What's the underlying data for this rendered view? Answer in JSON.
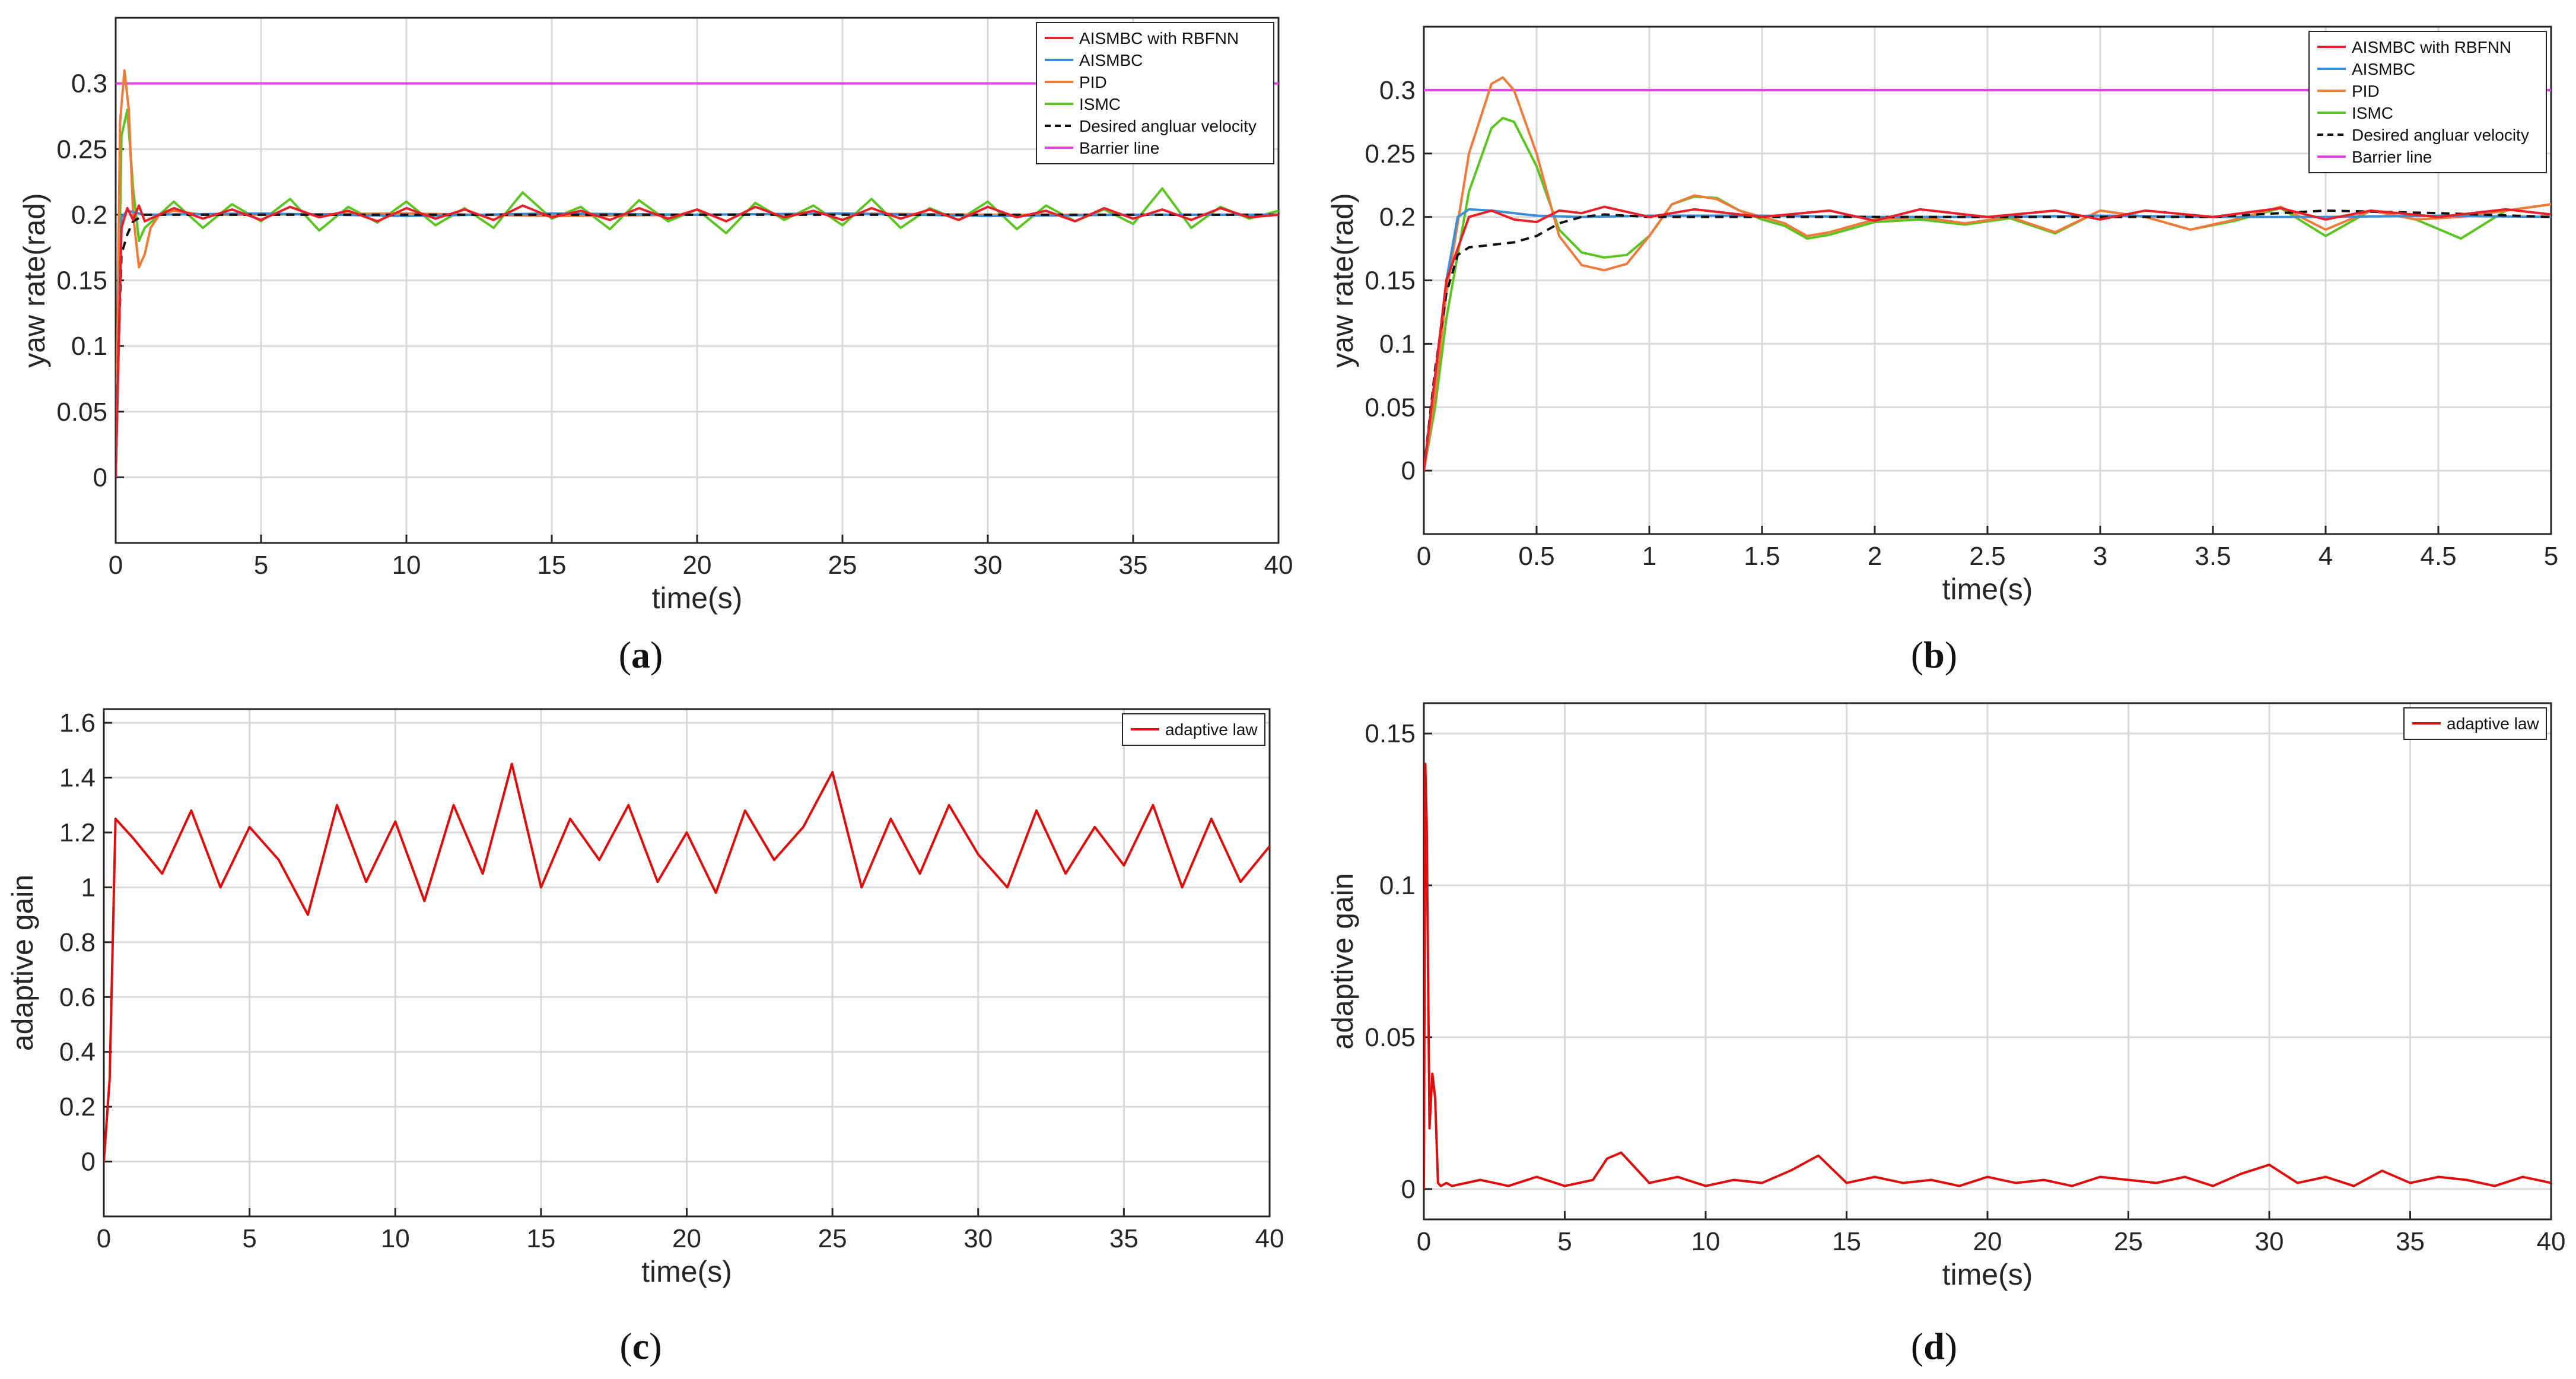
{
  "chart_data": [
    {
      "id": "a",
      "type": "line",
      "caption": "a",
      "xlabel": "time(s)",
      "ylabel": "yaw rate(rad)",
      "xlim": [
        0,
        40
      ],
      "ylim": [
        -0.05,
        0.35
      ],
      "xticks": [
        0,
        5,
        10,
        15,
        20,
        25,
        30,
        35,
        40
      ],
      "xtick_labels": [
        "0",
        "5",
        "10",
        "15",
        "20",
        "25",
        "30",
        "35",
        "40"
      ],
      "yticks": [
        0,
        0.05,
        0.1,
        0.15,
        0.2,
        0.25,
        0.3
      ],
      "ytick_labels": [
        "0",
        "0.05",
        "0.1",
        "0.15",
        "0.2",
        "0.25",
        "0.3"
      ],
      "grid": true,
      "legend_position": "top-right",
      "series": [
        {
          "name": "AISMBC with RBFNN",
          "color": "#e8202a",
          "dash": "none",
          "x": [
            0,
            0.2,
            0.4,
            0.6,
            0.8,
            1,
            2,
            3,
            4,
            5,
            6,
            7,
            8,
            9,
            10,
            11,
            12,
            13,
            14,
            15,
            16,
            17,
            18,
            19,
            20,
            21,
            22,
            23,
            24,
            25,
            26,
            27,
            28,
            29,
            30,
            31,
            32,
            33,
            34,
            35,
            36,
            37,
            38,
            39,
            40
          ],
          "y": [
            0,
            0.19,
            0.205,
            0.196,
            0.207,
            0.195,
            0.205,
            0.197,
            0.204,
            0.196,
            0.206,
            0.198,
            0.203,
            0.195,
            0.205,
            0.197,
            0.204,
            0.196,
            0.207,
            0.198,
            0.203,
            0.196,
            0.205,
            0.197,
            0.204,
            0.195,
            0.206,
            0.198,
            0.203,
            0.196,
            0.205,
            0.197,
            0.204,
            0.196,
            0.206,
            0.198,
            0.203,
            0.195,
            0.205,
            0.197,
            0.204,
            0.196,
            0.205,
            0.198,
            0.2
          ]
        },
        {
          "name": "AISMBC",
          "color": "#3a8fd9",
          "dash": "none",
          "x": [
            0,
            0.2,
            0.4,
            1,
            5,
            10,
            15,
            20,
            25,
            30,
            35,
            40
          ],
          "y": [
            0,
            0.198,
            0.203,
            0.2,
            0.201,
            0.199,
            0.201,
            0.2,
            0.201,
            0.199,
            0.2,
            0.2
          ]
        },
        {
          "name": "PID",
          "color": "#f07a3a",
          "dash": "none",
          "x": [
            0,
            0.15,
            0.3,
            0.45,
            0.6,
            0.8,
            1,
            1.2,
            1.5,
            2,
            3,
            5,
            10,
            15,
            20,
            25,
            30,
            35,
            40
          ],
          "y": [
            0,
            0.27,
            0.31,
            0.28,
            0.2,
            0.16,
            0.17,
            0.19,
            0.2,
            0.203,
            0.2,
            0.2,
            0.201,
            0.199,
            0.2,
            0.201,
            0.2,
            0.2,
            0.2
          ]
        },
        {
          "name": "ISMC",
          "color": "#5cc421",
          "dash": "none",
          "x": [
            0,
            0.2,
            0.4,
            0.6,
            0.8,
            1,
            2,
            3,
            4,
            5,
            6,
            7,
            8,
            9,
            10,
            11,
            12,
            13,
            14,
            15,
            16,
            17,
            18,
            19,
            20,
            21,
            22,
            23,
            24,
            25,
            26,
            27,
            28,
            29,
            30,
            31,
            32,
            33,
            34,
            35,
            36,
            37,
            38,
            39,
            40
          ],
          "y": [
            0,
            0.26,
            0.28,
            0.22,
            0.18,
            0.19,
            0.21,
            0.19,
            0.208,
            0.195,
            0.212,
            0.188,
            0.206,
            0.194,
            0.21,
            0.192,
            0.205,
            0.19,
            0.217,
            0.197,
            0.206,
            0.189,
            0.211,
            0.195,
            0.204,
            0.186,
            0.209,
            0.196,
            0.207,
            0.192,
            0.212,
            0.19,
            0.205,
            0.196,
            0.21,
            0.189,
            0.207,
            0.195,
            0.204,
            0.193,
            0.22,
            0.19,
            0.206,
            0.197,
            0.203
          ]
        },
        {
          "name": "Desired angluar velocity",
          "color": "#111111",
          "dash": "dashed",
          "x": [
            0,
            0.1,
            0.2,
            0.4,
            0.6,
            1,
            2,
            5,
            10,
            20,
            30,
            40
          ],
          "y": [
            0,
            0.1,
            0.17,
            0.185,
            0.195,
            0.2,
            0.2,
            0.2,
            0.2,
            0.2,
            0.2,
            0.2
          ]
        },
        {
          "name": "Barrier line",
          "color": "#e043e0",
          "dash": "none",
          "x": [
            0,
            40
          ],
          "y": [
            0.3,
            0.3
          ]
        }
      ]
    },
    {
      "id": "b",
      "type": "line",
      "caption": "b",
      "xlabel": "time(s)",
      "ylabel": "yaw rate(rad)",
      "xlim": [
        0,
        5
      ],
      "ylim": [
        -0.05,
        0.35
      ],
      "xticks": [
        0,
        0.5,
        1,
        1.5,
        2,
        2.5,
        3,
        3.5,
        4,
        4.5,
        5
      ],
      "xtick_labels": [
        "0",
        "0.5",
        "1",
        "1.5",
        "2",
        "2.5",
        "3",
        "3.5",
        "4",
        "4.5",
        "5"
      ],
      "yticks": [
        0,
        0.05,
        0.1,
        0.15,
        0.2,
        0.25,
        0.3
      ],
      "ytick_labels": [
        "0",
        "0.05",
        "0.1",
        "0.15",
        "0.2",
        "0.25",
        "0.3"
      ],
      "grid": true,
      "legend_position": "top-right",
      "series": [
        {
          "name": "AISMBC with RBFNN",
          "color": "#e8202a",
          "dash": "none",
          "x": [
            0,
            0.1,
            0.2,
            0.3,
            0.4,
            0.5,
            0.6,
            0.7,
            0.8,
            1,
            1.2,
            1.5,
            1.8,
            2,
            2.2,
            2.5,
            2.8,
            3,
            3.2,
            3.5,
            3.8,
            4,
            4.2,
            4.5,
            4.8,
            5
          ],
          "y": [
            0,
            0.15,
            0.2,
            0.205,
            0.198,
            0.196,
            0.205,
            0.203,
            0.208,
            0.2,
            0.206,
            0.2,
            0.205,
            0.197,
            0.206,
            0.2,
            0.205,
            0.198,
            0.205,
            0.2,
            0.207,
            0.198,
            0.205,
            0.2,
            0.206,
            0.202
          ]
        },
        {
          "name": "AISMBC",
          "color": "#3a8fd9",
          "dash": "none",
          "x": [
            0,
            0.1,
            0.15,
            0.2,
            0.3,
            0.5,
            0.7,
            1,
            1.5,
            2,
            2.5,
            3,
            3.5,
            4,
            4.5,
            5
          ],
          "y": [
            0,
            0.15,
            0.2,
            0.206,
            0.205,
            0.201,
            0.2,
            0.201,
            0.201,
            0.2,
            0.2,
            0.201,
            0.2,
            0.2,
            0.201,
            0.2
          ]
        },
        {
          "name": "PID",
          "color": "#f07a3a",
          "dash": "none",
          "x": [
            0,
            0.05,
            0.1,
            0.2,
            0.3,
            0.35,
            0.4,
            0.5,
            0.6,
            0.7,
            0.8,
            0.9,
            1,
            1.1,
            1.2,
            1.3,
            1.4,
            1.5,
            1.6,
            1.7,
            1.8,
            2,
            2.2,
            2.4,
            2.6,
            2.8,
            3,
            3.2,
            3.4,
            3.6,
            3.8,
            4,
            4.2,
            4.4,
            4.6,
            4.8,
            5
          ],
          "y": [
            0,
            0.06,
            0.14,
            0.25,
            0.305,
            0.31,
            0.3,
            0.25,
            0.185,
            0.162,
            0.158,
            0.163,
            0.185,
            0.21,
            0.217,
            0.214,
            0.205,
            0.2,
            0.195,
            0.185,
            0.188,
            0.198,
            0.2,
            0.195,
            0.2,
            0.188,
            0.205,
            0.2,
            0.19,
            0.198,
            0.208,
            0.19,
            0.205,
            0.198,
            0.2,
            0.205,
            0.21
          ]
        },
        {
          "name": "ISMC",
          "color": "#5cc421",
          "dash": "none",
          "x": [
            0,
            0.05,
            0.1,
            0.2,
            0.3,
            0.35,
            0.4,
            0.5,
            0.6,
            0.7,
            0.8,
            0.9,
            1,
            1.1,
            1.2,
            1.3,
            1.4,
            1.5,
            1.6,
            1.7,
            1.8,
            2,
            2.2,
            2.4,
            2.6,
            2.8,
            3,
            3.2,
            3.4,
            3.6,
            3.8,
            4,
            4.2,
            4.4,
            4.6,
            4.8,
            5
          ],
          "y": [
            0,
            0.05,
            0.12,
            0.22,
            0.27,
            0.278,
            0.275,
            0.24,
            0.19,
            0.172,
            0.168,
            0.17,
            0.185,
            0.21,
            0.216,
            0.215,
            0.205,
            0.198,
            0.193,
            0.183,
            0.186,
            0.196,
            0.198,
            0.194,
            0.199,
            0.187,
            0.205,
            0.2,
            0.19,
            0.197,
            0.207,
            0.185,
            0.205,
            0.198,
            0.183,
            0.205,
            0.21
          ]
        },
        {
          "name": "Desired angluar velocity",
          "color": "#111111",
          "dash": "dashed",
          "x": [
            0,
            0.05,
            0.1,
            0.15,
            0.2,
            0.3,
            0.4,
            0.5,
            0.6,
            0.7,
            0.8,
            1,
            1.5,
            2,
            2.5,
            3,
            3.5,
            4,
            4.5,
            5
          ],
          "y": [
            0,
            0.08,
            0.14,
            0.17,
            0.176,
            0.178,
            0.18,
            0.185,
            0.195,
            0.2,
            0.202,
            0.2,
            0.2,
            0.2,
            0.2,
            0.2,
            0.2,
            0.205,
            0.203,
            0.2
          ]
        },
        {
          "name": "Barrier line",
          "color": "#e043e0",
          "dash": "none",
          "x": [
            0,
            5
          ],
          "y": [
            0.3,
            0.3
          ]
        }
      ]
    },
    {
      "id": "c",
      "type": "line",
      "caption": "c",
      "xlabel": "time(s)",
      "ylabel": "adaptive gain",
      "xlim": [
        0,
        40
      ],
      "ylim": [
        -0.2,
        1.65
      ],
      "xticks": [
        0,
        5,
        10,
        15,
        20,
        25,
        30,
        35,
        40
      ],
      "xtick_labels": [
        "0",
        "5",
        "10",
        "15",
        "20",
        "25",
        "30",
        "35",
        "40"
      ],
      "yticks": [
        0,
        0.2,
        0.4,
        0.6,
        0.8,
        1,
        1.2,
        1.4,
        1.6
      ],
      "ytick_labels": [
        "0",
        "0.2",
        "0.4",
        "0.6",
        "0.8",
        "1",
        "1.2",
        "1.4",
        "1.6"
      ],
      "grid": true,
      "legend_position": "top-right",
      "series": [
        {
          "name": "adaptive law",
          "color": "#e00d0d",
          "dash": "none",
          "x": [
            0,
            0.2,
            0.4,
            1,
            2,
            3,
            4,
            5,
            6,
            7,
            8,
            9,
            10,
            11,
            12,
            13,
            14,
            15,
            16,
            17,
            18,
            19,
            20,
            21,
            22,
            23,
            24,
            25,
            26,
            27,
            28,
            29,
            30,
            31,
            32,
            33,
            34,
            35,
            36,
            37,
            38,
            39,
            40
          ],
          "y": [
            0,
            0.3,
            1.25,
            1.18,
            1.05,
            1.28,
            1.0,
            1.22,
            1.1,
            0.9,
            1.3,
            1.02,
            1.24,
            0.95,
            1.3,
            1.05,
            1.45,
            1.0,
            1.25,
            1.1,
            1.3,
            1.02,
            1.2,
            0.98,
            1.28,
            1.1,
            1.22,
            1.42,
            1.0,
            1.25,
            1.05,
            1.3,
            1.12,
            1.0,
            1.28,
            1.05,
            1.22,
            1.08,
            1.3,
            1.0,
            1.25,
            1.02,
            1.15
          ]
        }
      ]
    },
    {
      "id": "d",
      "type": "line",
      "caption": "d",
      "xlabel": "time(s)",
      "ylabel": "adaptive gain",
      "xlim": [
        0,
        40
      ],
      "ylim": [
        -0.01,
        0.16
      ],
      "xticks": [
        0,
        5,
        10,
        15,
        20,
        25,
        30,
        35,
        40
      ],
      "xtick_labels": [
        "0",
        "5",
        "10",
        "15",
        "20",
        "25",
        "30",
        "35",
        "40"
      ],
      "yticks": [
        0,
        0.05,
        0.1,
        0.15
      ],
      "ytick_labels": [
        "0",
        "0.05",
        "0.1",
        "0.15"
      ],
      "grid": true,
      "legend_position": "top-right",
      "series": [
        {
          "name": "adaptive law",
          "color": "#e00d0d",
          "dash": "none",
          "x": [
            0,
            0.05,
            0.1,
            0.2,
            0.3,
            0.4,
            0.5,
            0.6,
            0.8,
            1,
            2,
            3,
            4,
            5,
            6,
            6.5,
            7,
            8,
            9,
            10,
            11,
            12,
            13,
            14,
            15,
            16,
            17,
            18,
            19,
            20,
            21,
            22,
            23,
            24,
            25,
            26,
            27,
            28,
            29,
            30,
            31,
            32,
            33,
            34,
            35,
            36,
            37,
            38,
            39,
            40
          ],
          "y": [
            0,
            0.14,
            0.12,
            0.02,
            0.038,
            0.03,
            0.002,
            0.001,
            0.002,
            0.001,
            0.003,
            0.001,
            0.004,
            0.001,
            0.003,
            0.01,
            0.012,
            0.002,
            0.004,
            0.001,
            0.003,
            0.002,
            0.006,
            0.011,
            0.002,
            0.004,
            0.002,
            0.003,
            0.001,
            0.004,
            0.002,
            0.003,
            0.001,
            0.004,
            0.003,
            0.002,
            0.004,
            0.001,
            0.005,
            0.008,
            0.002,
            0.004,
            0.001,
            0.006,
            0.002,
            0.004,
            0.003,
            0.001,
            0.004,
            0.002
          ]
        }
      ]
    }
  ]
}
